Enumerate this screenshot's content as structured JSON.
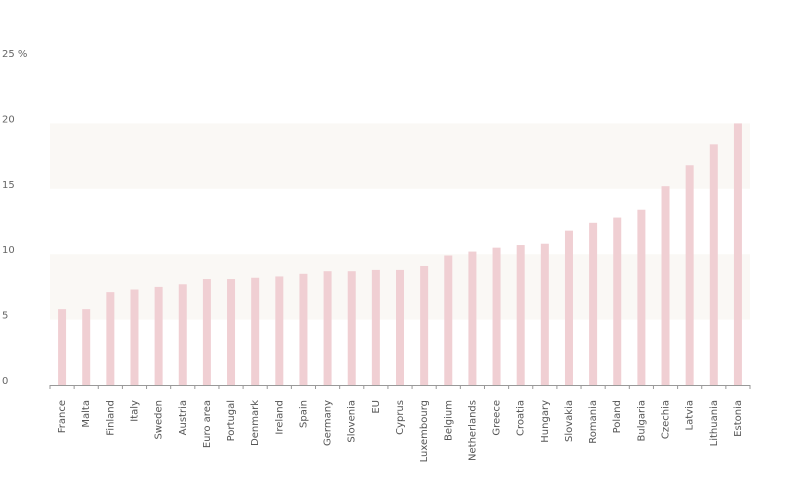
{
  "chart_data": {
    "type": "bar",
    "ylabel": "%",
    "ylim": [
      0,
      25
    ],
    "yticks": [
      0,
      5,
      10,
      15,
      20,
      25
    ],
    "ytick_labels": [
      "0",
      "5",
      "10",
      "15",
      "20",
      "25 %"
    ],
    "grid": "alternating horizontal bands",
    "categories": [
      "France",
      "Malta",
      "Finland",
      "Italy",
      "Sweden",
      "Austria",
      "Euro area",
      "Portugal",
      "Denmark",
      "Ireland",
      "Spain",
      "Germany",
      "Slovenia",
      "EU",
      "Cyprus",
      "Luxembourg",
      "Belgium",
      "Netherlands",
      "Greece",
      "Croatia",
      "Hungary",
      "Slovakia",
      "Romania",
      "Poland",
      "Bulgaria",
      "Czechia",
      "Latvia",
      "Lithuania",
      "Estonia"
    ],
    "values": [
      5.8,
      5.8,
      7.1,
      7.3,
      7.5,
      7.7,
      8.1,
      8.1,
      8.2,
      8.3,
      8.5,
      8.7,
      8.7,
      8.8,
      8.8,
      9.1,
      9.9,
      10.2,
      10.5,
      10.7,
      10.8,
      11.8,
      12.4,
      12.8,
      13.4,
      15.2,
      16.8,
      18.4,
      20.0
    ],
    "colors": {
      "bar": "#f0cfd3",
      "band": "#faf8f5",
      "axis": "#999999",
      "text": "#666666"
    }
  }
}
